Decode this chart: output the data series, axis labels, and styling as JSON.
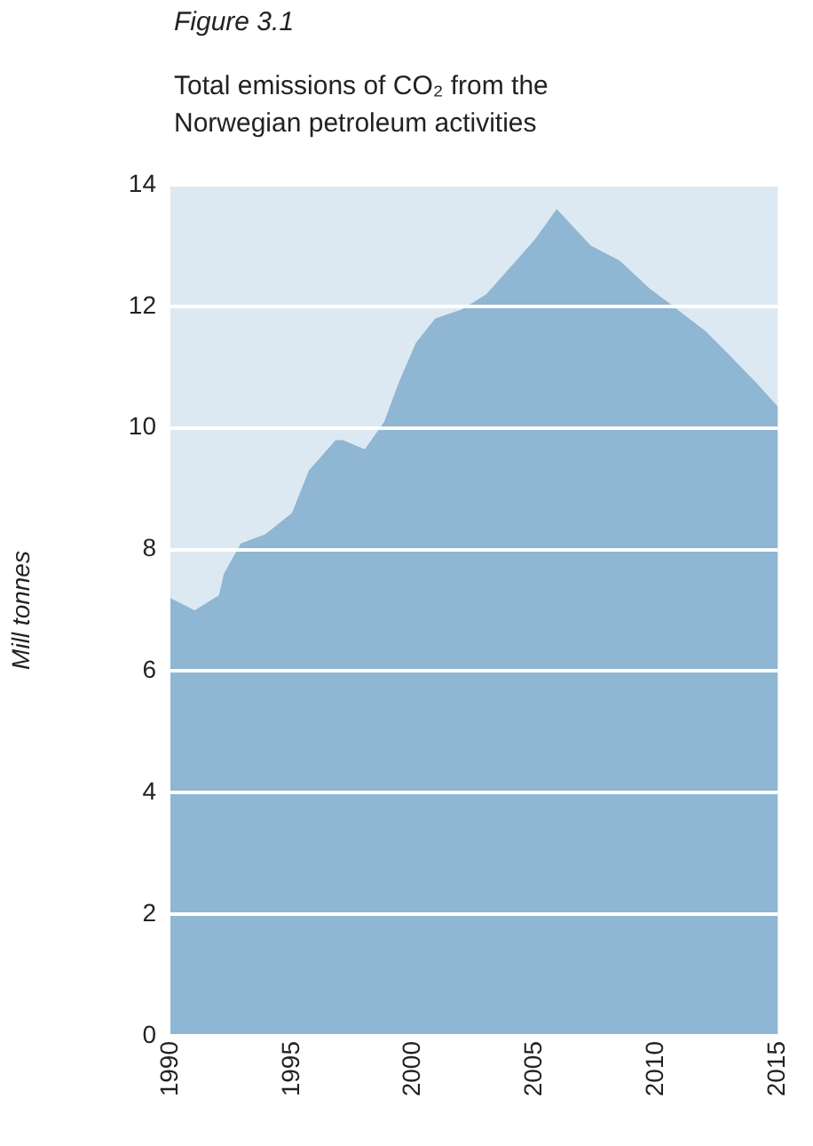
{
  "chart_data": {
    "type": "area",
    "title": "Figure 3.1",
    "subtitle": "Total emissions of CO₂ from the Norwegian petroleum activities",
    "ylabel": "Mill tonnes",
    "xlim": [
      1990,
      2015
    ],
    "xticks": [
      1990,
      1995,
      2000,
      2005,
      2010,
      2015
    ],
    "ylim": [
      0,
      14
    ],
    "yticks": [
      0,
      2,
      4,
      6,
      8,
      10,
      12,
      14
    ],
    "grid": "y",
    "series": [
      {
        "color": "#8fb6d2",
        "x": [
          1990,
          1991,
          1992,
          1992.2,
          1992.9,
          1993.9,
          1995,
          1995.7,
          1996.8,
          1997.1,
          1998,
          1998.8,
          1999.4,
          2000.1,
          2000.9,
          2002,
          2003,
          2004,
          2005,
          2005.9,
          2007.3,
          2008.5,
          2009.7,
          2010.7,
          2012,
          2013,
          2014.1,
          2015
        ],
        "values": [
          7.2,
          7.0,
          7.25,
          7.6,
          8.1,
          8.25,
          8.6,
          9.3,
          9.8,
          9.8,
          9.65,
          10.1,
          10.75,
          11.4,
          11.8,
          11.95,
          12.2,
          12.65,
          13.1,
          13.6,
          13.0,
          12.75,
          12.3,
          12.0,
          11.6,
          11.2,
          10.75,
          10.35
        ]
      }
    ]
  }
}
